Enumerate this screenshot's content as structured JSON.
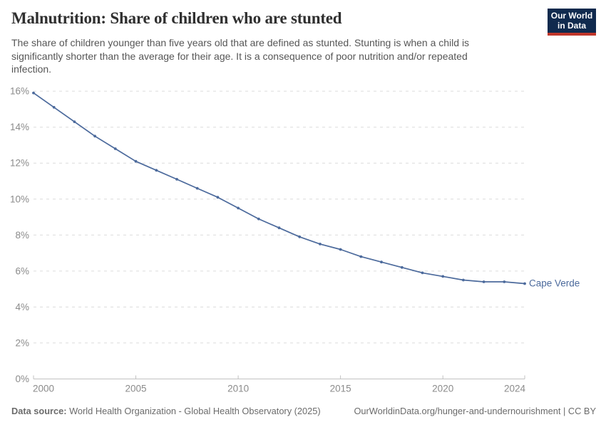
{
  "header": {
    "title": "Malnutrition: Share of children who are stunted",
    "subtitle": "The share of children younger than five years old that are defined as stunted. Stunting is when a child is significantly shorter than the average for their age. It is a consequence of poor nutrition and/or repeated infection.",
    "logo": {
      "line1": "Our World",
      "line2": "in Data",
      "bg_color": "#102a4e",
      "accent_color": "#c0362a"
    }
  },
  "chart_data": {
    "type": "line",
    "title": "Malnutrition: Share of children who are stunted",
    "x": [
      2000,
      2001,
      2002,
      2003,
      2004,
      2005,
      2006,
      2007,
      2008,
      2009,
      2010,
      2011,
      2012,
      2013,
      2014,
      2015,
      2016,
      2017,
      2018,
      2019,
      2020,
      2021,
      2022,
      2023,
      2024
    ],
    "series": [
      {
        "name": "Cape Verde",
        "values": [
          15.9,
          15.1,
          14.3,
          13.5,
          12.8,
          12.1,
          11.6,
          11.1,
          10.6,
          10.1,
          9.5,
          8.9,
          8.4,
          7.9,
          7.5,
          7.2,
          6.8,
          6.5,
          6.2,
          5.9,
          5.7,
          5.5,
          5.4,
          5.4,
          5.3
        ],
        "color": "#4C6A9C"
      }
    ],
    "end_label": "Cape Verde",
    "xlabel": "",
    "ylabel": "",
    "xlim": [
      2000,
      2024
    ],
    "ylim": [
      0,
      16
    ],
    "xticks": [
      2000,
      2005,
      2010,
      2015,
      2020,
      2024
    ],
    "yticks": [
      0,
      2,
      4,
      6,
      8,
      10,
      12,
      14,
      16
    ],
    "ytick_suffix": "%",
    "grid": "horizontal-dashed",
    "legend_position": "end-of-line-label",
    "colors": {
      "grid": "#dcdcdc",
      "axis": "#c2c2c2",
      "tick_label": "#8b8b8b",
      "line": "#4C6A9C"
    }
  },
  "footer": {
    "source_label": "Data source:",
    "source_text": " World Health Organization - Global Health Observatory (2025)",
    "link_text": "OurWorldinData.org/hunger-and-undernourishment | CC BY"
  }
}
